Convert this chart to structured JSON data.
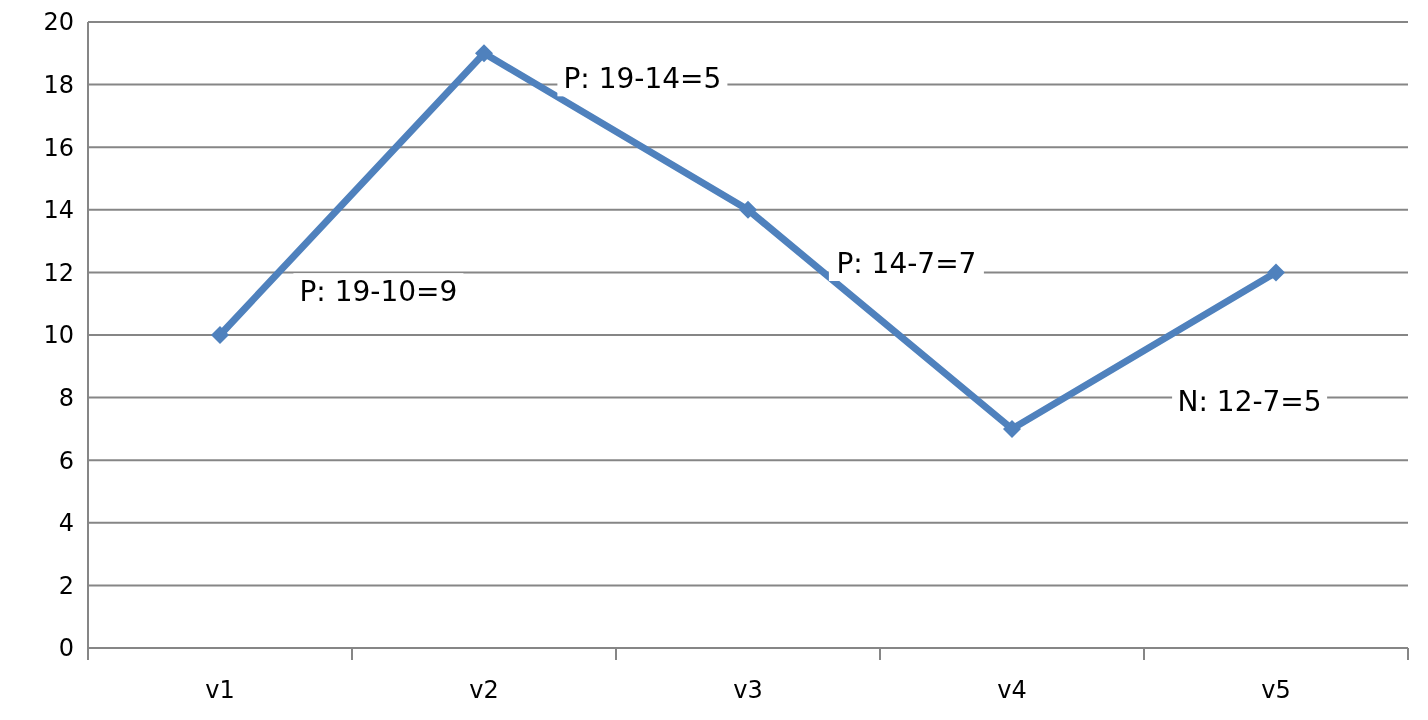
{
  "chart_data": {
    "type": "line",
    "categories": [
      "v1",
      "v2",
      "v3",
      "v4",
      "v5"
    ],
    "series": [
      {
        "color": "#4f81bd",
        "values": [
          10,
          19,
          14,
          7,
          12
        ]
      }
    ],
    "ylim": [
      0,
      20
    ],
    "yticks": [
      0,
      2,
      4,
      6,
      8,
      10,
      12,
      14,
      16,
      18,
      20
    ],
    "grid": "y",
    "marker": "diamond",
    "line_style": "solid",
    "annotations": [
      "P: 19-10=9",
      "P: 19-14=5",
      "P: 14-7=7",
      "N: 12-7=5"
    ]
  }
}
